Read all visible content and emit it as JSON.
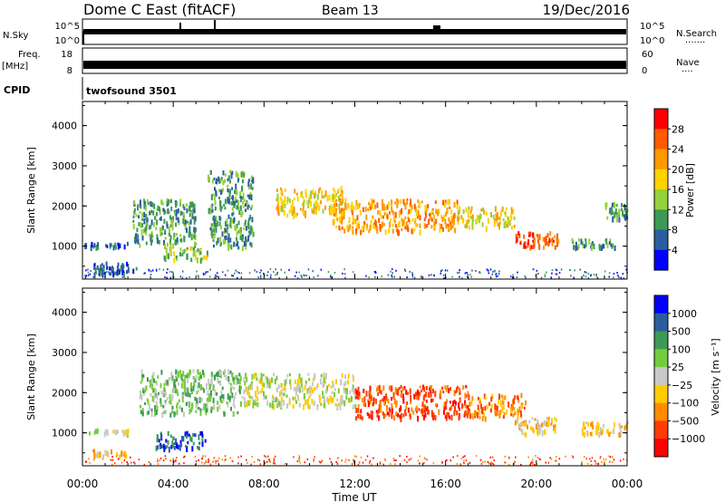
{
  "header": {
    "station": "Dome C East (fitACF)",
    "beam": "Beam 13",
    "date": "19/Dec/2016"
  },
  "top_panels": {
    "nsky_label": "N.Sky",
    "nsky_ticks": [
      "10^5",
      "10^0"
    ],
    "nsearch_label": "N.Search",
    "nsearch_dots": "·······",
    "freq_label": "Freq.",
    "freq_unit": "[MHz]",
    "freq_ticks": [
      "18",
      "8"
    ],
    "nave_label": "Nave",
    "nave_dots": "····",
    "nave_ticks": [
      "60",
      "0"
    ],
    "cpid_label": "CPID",
    "cpid_value": "twofsound 3501"
  },
  "chart_data": [
    {
      "type": "heatmap",
      "name": "power",
      "ylabel": "Slant Range [km]",
      "ylim": [
        180,
        4600
      ],
      "yticks": [
        "4000",
        "3000",
        "2000",
        "1000"
      ],
      "ytick_values": [
        4000,
        3000,
        2000,
        1000
      ],
      "colorbar_label": "Power [dB]",
      "colorbar_ticks": [
        "28",
        "24",
        "20",
        "16",
        "12",
        "8",
        "4"
      ],
      "colorbar_colors": [
        "#ff0000",
        "#ff5a00",
        "#ff9900",
        "#ffd200",
        "#95d138",
        "#3c9a56",
        "#2a5e9e",
        "#0000ff"
      ],
      "regions": [
        {
          "t0": 0.3,
          "t1": 2.4,
          "r0": 320,
          "r1": 620,
          "level": 1
        },
        {
          "t0": 0.0,
          "t1": 2.0,
          "r0": 1020,
          "r1": 1110,
          "level": 1
        },
        {
          "t0": 2.2,
          "t1": 5.0,
          "r0": 1050,
          "r1": 2200,
          "level": 2
        },
        {
          "t0": 3.5,
          "t1": 5.5,
          "r0": 700,
          "r1": 1000,
          "level": 3
        },
        {
          "t0": 5.5,
          "t1": 7.5,
          "r0": 1000,
          "r1": 2900,
          "level": 2
        },
        {
          "t0": 8.5,
          "t1": 11.5,
          "r0": 1800,
          "r1": 2500,
          "level": 4
        },
        {
          "t0": 11.0,
          "t1": 16.5,
          "r0": 1400,
          "r1": 2200,
          "level": 5
        },
        {
          "t0": 16.5,
          "t1": 19.0,
          "r0": 1500,
          "r1": 2000,
          "level": 4
        },
        {
          "t0": 19.0,
          "t1": 21.0,
          "r0": 1000,
          "r1": 1400,
          "level": 6
        },
        {
          "t0": 21.5,
          "t1": 23.5,
          "r0": 1000,
          "r1": 1200,
          "level": 2
        },
        {
          "t0": 23.0,
          "t1": 24.0,
          "r0": 1700,
          "r1": 2100,
          "level": 2
        }
      ]
    },
    {
      "type": "heatmap",
      "name": "velocity",
      "ylabel": "Slant Range [km]",
      "ylim": [
        180,
        4600
      ],
      "yticks": [
        "4000",
        "3000",
        "2000",
        "1000"
      ],
      "ytick_values": [
        4000,
        3000,
        2000,
        1000
      ],
      "xlabel": "Time UT",
      "xticks": [
        "00:00",
        "04:00",
        "08:00",
        "12:00",
        "16:00",
        "20:00",
        "00:00"
      ],
      "colorbar_label": "Velocity [m s⁻¹]",
      "colorbar_ticks": [
        "1000",
        "500",
        "100",
        "25",
        "−25",
        "−100",
        "−500",
        "−1000"
      ],
      "colorbar_colors": [
        "#0000ff",
        "#2a5e9e",
        "#3c9a56",
        "#74cc3c",
        "#c8c8c8",
        "#ffcc00",
        "#ff8c00",
        "#ff3c00",
        "#ff0000"
      ],
      "regions": [
        {
          "t0": 0.3,
          "t1": 2.0,
          "r0": 450,
          "r1": 600,
          "level": 3
        },
        {
          "t0": 0.0,
          "t1": 2.0,
          "r0": 1020,
          "r1": 1110,
          "level": 4
        },
        {
          "t0": 3.2,
          "t1": 5.4,
          "r0": 650,
          "r1": 1050,
          "level": 7
        },
        {
          "t0": 2.5,
          "t1": 7.0,
          "r0": 1500,
          "r1": 2600,
          "level": 5
        },
        {
          "t0": 7.0,
          "t1": 12.0,
          "r0": 1700,
          "r1": 2500,
          "level": 4
        },
        {
          "t0": 12.0,
          "t1": 17.0,
          "r0": 1400,
          "r1": 2200,
          "level": 1
        },
        {
          "t0": 17.0,
          "t1": 19.5,
          "r0": 1400,
          "r1": 2000,
          "level": 2
        },
        {
          "t0": 19.0,
          "t1": 21.0,
          "r0": 1000,
          "r1": 1400,
          "level": 3
        },
        {
          "t0": 22.0,
          "t1": 24.0,
          "r0": 1000,
          "r1": 1300,
          "level": 3
        }
      ]
    }
  ]
}
